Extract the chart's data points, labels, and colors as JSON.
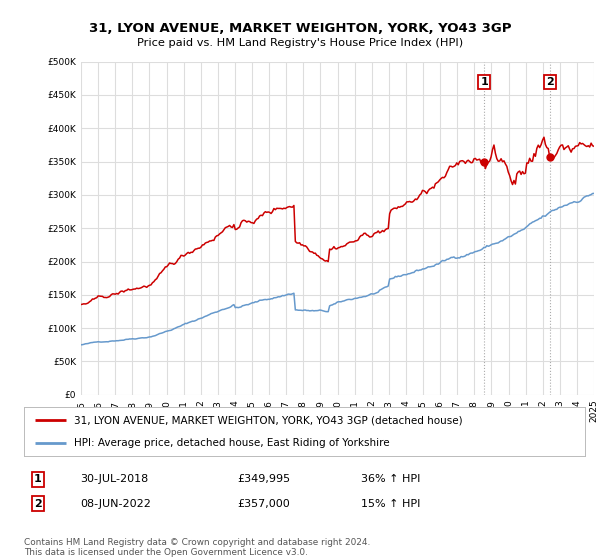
{
  "title_line1": "31, LYON AVENUE, MARKET WEIGHTON, YORK, YO43 3GP",
  "title_line2": "Price paid vs. HM Land Registry's House Price Index (HPI)",
  "legend_line1": "31, LYON AVENUE, MARKET WEIGHTON, YORK, YO43 3GP (detached house)",
  "legend_line2": "HPI: Average price, detached house, East Riding of Yorkshire",
  "footnote": "Contains HM Land Registry data © Crown copyright and database right 2024.\nThis data is licensed under the Open Government Licence v3.0.",
  "sale1_date": "30-JUL-2018",
  "sale1_price": "£349,995",
  "sale1_hpi": "36% ↑ HPI",
  "sale2_date": "08-JUN-2022",
  "sale2_price": "£357,000",
  "sale2_hpi": "15% ↑ HPI",
  "house_color": "#cc0000",
  "hpi_color": "#6699cc",
  "background_color": "#ffffff",
  "grid_color": "#dddddd",
  "ylim": [
    0,
    500000
  ],
  "yticks": [
    0,
    50000,
    100000,
    150000,
    200000,
    250000,
    300000,
    350000,
    400000,
    450000,
    500000
  ],
  "sale1_x": 2018.58,
  "sale1_y": 349995,
  "sale2_x": 2022.44,
  "sale2_y": 357000,
  "xmin": 1995,
  "xmax": 2025
}
